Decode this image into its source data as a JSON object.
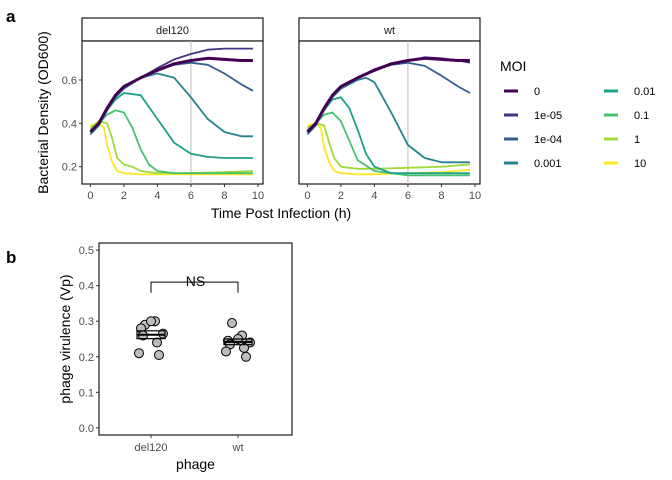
{
  "panels": {
    "a": "a",
    "b": "b"
  },
  "colors": {
    "0": "#440154",
    "1e-05": "#463480",
    "1e-04": "#355F8D",
    "0.001": "#25828E",
    "0.01": "#1FA188",
    "0.1": "#48C16E",
    "1": "#A0DA39",
    "10": "#FDE725",
    "vline": "#bebebe",
    "points": "#bdbdbd"
  },
  "chart_data": [
    {
      "type": "line",
      "title": "",
      "xlabel": "Time Post Infection (h)",
      "ylabel": "Bacterial Density (OD600)",
      "xlim": [
        -0.5,
        10.3
      ],
      "ylim": [
        0.12,
        0.78
      ],
      "xticks": [
        "0",
        "2",
        "4",
        "6",
        "8",
        "10"
      ],
      "xtick_values": [
        0,
        2,
        4,
        6,
        8,
        10
      ],
      "yticks": [
        "0.2",
        "0.4",
        "0.6"
      ],
      "ytick_values": [
        0.2,
        0.4,
        0.6
      ],
      "vline_x": 6,
      "facets": [
        {
          "label": "del120",
          "series": [
            {
              "name": "0",
              "x": [
                0,
                0.5,
                1,
                1.5,
                2,
                3,
                4,
                5,
                6,
                7,
                8,
                9,
                9.7
              ],
              "y": [
                0.36,
                0.4,
                0.47,
                0.53,
                0.57,
                0.61,
                0.645,
                0.675,
                0.69,
                0.7,
                0.695,
                0.69,
                0.69
              ]
            },
            {
              "name": "1e-05",
              "x": [
                0,
                0.5,
                1,
                1.5,
                2,
                3,
                4,
                5,
                6,
                7,
                8,
                9,
                9.7
              ],
              "y": [
                0.36,
                0.4,
                0.47,
                0.53,
                0.57,
                0.61,
                0.655,
                0.695,
                0.72,
                0.74,
                0.745,
                0.745,
                0.745
              ]
            },
            {
              "name": "1e-04",
              "x": [
                0,
                0.5,
                1,
                1.5,
                2,
                3,
                4,
                5,
                6,
                7,
                8,
                9,
                9.7
              ],
              "y": [
                0.36,
                0.4,
                0.47,
                0.53,
                0.57,
                0.61,
                0.645,
                0.67,
                0.68,
                0.67,
                0.63,
                0.58,
                0.55
              ]
            },
            {
              "name": "0.001",
              "x": [
                0,
                0.5,
                1,
                1.5,
                2,
                3,
                4,
                5,
                6,
                7,
                8,
                9,
                9.7
              ],
              "y": [
                0.35,
                0.39,
                0.46,
                0.52,
                0.56,
                0.61,
                0.63,
                0.61,
                0.52,
                0.42,
                0.36,
                0.34,
                0.34
              ]
            },
            {
              "name": "0.01",
              "x": [
                0,
                0.5,
                1,
                1.5,
                2,
                3,
                4,
                5,
                6,
                7,
                8,
                9,
                9.7
              ],
              "y": [
                0.35,
                0.39,
                0.46,
                0.51,
                0.54,
                0.53,
                0.42,
                0.31,
                0.26,
                0.245,
                0.24,
                0.24,
                0.24
              ]
            },
            {
              "name": "0.1",
              "x": [
                0,
                0.5,
                1,
                1.5,
                2,
                2.5,
                3,
                3.5,
                4,
                5,
                6,
                8,
                9.7
              ],
              "y": [
                0.37,
                0.4,
                0.44,
                0.46,
                0.45,
                0.38,
                0.28,
                0.21,
                0.18,
                0.17,
                0.17,
                0.17,
                0.17
              ]
            },
            {
              "name": "1",
              "x": [
                0,
                0.5,
                1,
                1.3,
                1.6,
                2,
                2.5,
                3,
                4,
                6,
                8,
                9.7
              ],
              "y": [
                0.38,
                0.41,
                0.4,
                0.33,
                0.24,
                0.21,
                0.2,
                0.18,
                0.17,
                0.17,
                0.175,
                0.18
              ]
            },
            {
              "name": "10",
              "x": [
                0,
                0.5,
                0.8,
                1,
                1.3,
                1.6,
                2,
                3,
                4,
                6,
                8,
                9.7
              ],
              "y": [
                0.39,
                0.4,
                0.38,
                0.3,
                0.22,
                0.18,
                0.17,
                0.165,
                0.165,
                0.165,
                0.165,
                0.165
              ]
            }
          ]
        },
        {
          "label": "wt",
          "series": [
            {
              "name": "0",
              "x": [
                0,
                0.5,
                1,
                1.5,
                2,
                3,
                4,
                5,
                6,
                7,
                8,
                9,
                9.7
              ],
              "y": [
                0.36,
                0.4,
                0.47,
                0.53,
                0.57,
                0.61,
                0.645,
                0.675,
                0.69,
                0.7,
                0.695,
                0.69,
                0.69
              ]
            },
            {
              "name": "1e-05",
              "x": [
                0,
                0.5,
                1,
                1.5,
                2,
                3,
                4,
                5,
                6,
                7,
                8,
                9,
                9.7
              ],
              "y": [
                0.36,
                0.4,
                0.47,
                0.53,
                0.57,
                0.61,
                0.65,
                0.675,
                0.69,
                0.705,
                0.7,
                0.69,
                0.68
              ]
            },
            {
              "name": "1e-04",
              "x": [
                0,
                0.5,
                1,
                1.5,
                2,
                3,
                4,
                5,
                6,
                7,
                8,
                9,
                9.7
              ],
              "y": [
                0.36,
                0.4,
                0.47,
                0.53,
                0.57,
                0.61,
                0.645,
                0.67,
                0.68,
                0.665,
                0.62,
                0.57,
                0.54
              ]
            },
            {
              "name": "0.001",
              "x": [
                0,
                0.5,
                1,
                1.5,
                2,
                3,
                3.5,
                4,
                5,
                6,
                7,
                8,
                9.7
              ],
              "y": [
                0.35,
                0.39,
                0.46,
                0.52,
                0.56,
                0.6,
                0.61,
                0.59,
                0.45,
                0.3,
                0.24,
                0.22,
                0.22
              ]
            },
            {
              "name": "0.01",
              "x": [
                0,
                0.5,
                1,
                1.5,
                2,
                2.5,
                3,
                3.5,
                4,
                5,
                6,
                8,
                9.7
              ],
              "y": [
                0.35,
                0.39,
                0.46,
                0.51,
                0.52,
                0.47,
                0.37,
                0.26,
                0.2,
                0.17,
                0.17,
                0.17,
                0.17
              ]
            },
            {
              "name": "0.1",
              "x": [
                0,
                0.5,
                1,
                1.5,
                2,
                2.5,
                3,
                4,
                6,
                8,
                9.7
              ],
              "y": [
                0.37,
                0.4,
                0.44,
                0.45,
                0.41,
                0.32,
                0.23,
                0.18,
                0.16,
                0.16,
                0.16
              ]
            },
            {
              "name": "1",
              "x": [
                0,
                0.5,
                1,
                1.3,
                1.6,
                2,
                3,
                4,
                6,
                8,
                9.7
              ],
              "y": [
                0.38,
                0.4,
                0.39,
                0.31,
                0.24,
                0.2,
                0.19,
                0.19,
                0.195,
                0.2,
                0.21
              ]
            },
            {
              "name": "10",
              "x": [
                0,
                0.5,
                0.8,
                1,
                1.3,
                1.6,
                2,
                3,
                4,
                6,
                8,
                9.7
              ],
              "y": [
                0.39,
                0.4,
                0.38,
                0.29,
                0.22,
                0.18,
                0.17,
                0.165,
                0.165,
                0.17,
                0.175,
                0.185
              ]
            }
          ]
        }
      ],
      "legend": {
        "title": "MOI",
        "position": "right",
        "entries": [
          "0",
          "1e-05",
          "1e-04",
          "0.001",
          "0.01",
          "0.1",
          "1",
          "10"
        ]
      }
    },
    {
      "type": "scatter",
      "title": "",
      "xlabel": "phage",
      "ylabel": "phage virulence (Vp)",
      "categories": [
        "del120",
        "wt"
      ],
      "ylim": [
        -0.02,
        0.52
      ],
      "yticks": [
        "0.0",
        "0.1",
        "0.2",
        "0.3",
        "0.4",
        "0.5"
      ],
      "ytick_values": [
        0.0,
        0.1,
        0.2,
        0.3,
        0.4,
        0.5
      ],
      "points": [
        {
          "category": "del120",
          "values": [
            0.29,
            0.3,
            0.3,
            0.28,
            0.265,
            0.26,
            0.24,
            0.21,
            0.205
          ]
        },
        {
          "category": "wt",
          "values": [
            0.295,
            0.26,
            0.25,
            0.245,
            0.24,
            0.235,
            0.225,
            0.215,
            0.2
          ]
        }
      ],
      "means": {
        "del120": 0.262,
        "wt": 0.242
      },
      "error": {
        "del120": 0.011,
        "wt": 0.008
      },
      "annotation": {
        "text": "NS",
        "bracket_y": 0.41
      }
    }
  ]
}
